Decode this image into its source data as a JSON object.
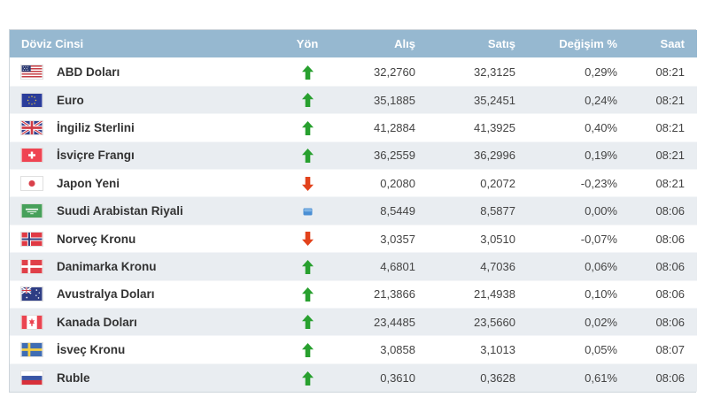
{
  "widget": {
    "title_column": "Döviz Cinsi",
    "colors": {
      "header_bg": "#96b8d0",
      "header_text": "#ffffff",
      "row_alt_bg": "#e9edf1",
      "up_arrow": "#28a02f",
      "down_arrow": "#e2421c",
      "flat_icon": "#4a8fd4"
    }
  },
  "table": {
    "columns": [
      {
        "key": "currency",
        "label": "Döviz Cinsi"
      },
      {
        "key": "direction",
        "label": "Yön"
      },
      {
        "key": "buy",
        "label": "Alış"
      },
      {
        "key": "sell",
        "label": "Satış"
      },
      {
        "key": "change",
        "label": "Değişim %"
      },
      {
        "key": "time",
        "label": "Saat"
      }
    ],
    "rows": [
      {
        "flag": "us",
        "currency": "ABD Doları",
        "direction": "up",
        "buy": "32,2760",
        "sell": "32,3125",
        "change": "0,29%",
        "time": "08:21"
      },
      {
        "flag": "eu",
        "currency": "Euro",
        "direction": "up",
        "buy": "35,1885",
        "sell": "35,2451",
        "change": "0,24%",
        "time": "08:21"
      },
      {
        "flag": "gb",
        "currency": "İngiliz Sterlini",
        "direction": "up",
        "buy": "41,2884",
        "sell": "41,3925",
        "change": "0,40%",
        "time": "08:21"
      },
      {
        "flag": "ch",
        "currency": "İsviçre Frangı",
        "direction": "up",
        "buy": "36,2559",
        "sell": "36,2996",
        "change": "0,19%",
        "time": "08:21"
      },
      {
        "flag": "jp",
        "currency": "Japon Yeni",
        "direction": "down",
        "buy": "0,2080",
        "sell": "0,2072",
        "change": "-0,23%",
        "time": "08:21"
      },
      {
        "flag": "sa",
        "currency": "Suudi Arabistan Riyali",
        "direction": "flat",
        "buy": "8,5449",
        "sell": "8,5877",
        "change": "0,00%",
        "time": "08:06"
      },
      {
        "flag": "no",
        "currency": "Norveç Kronu",
        "direction": "down",
        "buy": "3,0357",
        "sell": "3,0510",
        "change": "-0,07%",
        "time": "08:06"
      },
      {
        "flag": "dk",
        "currency": "Danimarka Kronu",
        "direction": "up",
        "buy": "4,6801",
        "sell": "4,7036",
        "change": "0,06%",
        "time": "08:06"
      },
      {
        "flag": "au",
        "currency": "Avustralya Doları",
        "direction": "up",
        "buy": "21,3866",
        "sell": "21,4938",
        "change": "0,10%",
        "time": "08:06"
      },
      {
        "flag": "ca",
        "currency": "Kanada Doları",
        "direction": "up",
        "buy": "23,4485",
        "sell": "23,5660",
        "change": "0,02%",
        "time": "08:06"
      },
      {
        "flag": "se",
        "currency": "İsveç Kronu",
        "direction": "up",
        "buy": "3,0858",
        "sell": "3,1013",
        "change": "0,05%",
        "time": "08:07"
      },
      {
        "flag": "ru",
        "currency": "Ruble",
        "direction": "up",
        "buy": "0,3610",
        "sell": "0,3628",
        "change": "0,61%",
        "time": "08:06"
      }
    ]
  }
}
